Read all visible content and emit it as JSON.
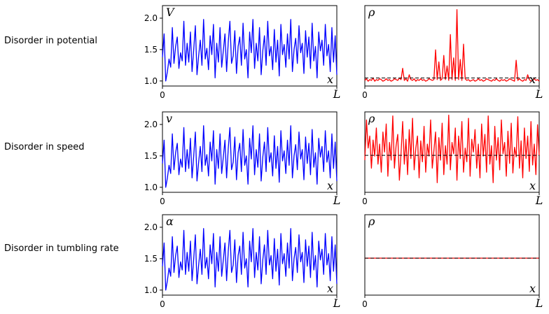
{
  "rows": [
    {
      "label": "Disorder in potential"
    },
    {
      "label": "Disorder in speed"
    },
    {
      "label": "Disorder in tumbling rate"
    }
  ],
  "axis": {
    "x_start": "0",
    "x_end": "L",
    "x_var": "x"
  },
  "colors": {
    "field": "#0000ff",
    "density": "#ff0000",
    "mean": "#000000"
  },
  "chart_data": [
    {
      "type": "line",
      "row": 0,
      "panel": "left",
      "ylabel": "V",
      "xlabel": "x",
      "xticks": [
        "0",
        "L"
      ],
      "yticks": [
        1.0,
        1.5,
        2.0
      ],
      "ylim": [
        0.92,
        2.2
      ],
      "series": [
        {
          "values": [
            1.38,
            1.75,
            1.0,
            1.15,
            1.35,
            1.22,
            1.85,
            1.28,
            1.55,
            1.7,
            1.2,
            1.45,
            1.32,
            1.95,
            1.25,
            1.6,
            1.3,
            1.78,
            1.15,
            1.5,
            1.88,
            1.1,
            1.4,
            1.65,
            1.25,
            1.98,
            1.35,
            1.52,
            1.18,
            1.72,
            1.42,
            1.9,
            1.05,
            1.6,
            1.3,
            1.85,
            1.22,
            1.48,
            1.75,
            1.15,
            1.62,
            1.95,
            1.28,
            1.4,
            1.8,
            1.12,
            1.55,
            1.7,
            1.25,
            1.92,
            1.35,
            1.5,
            1.05,
            1.78,
            1.45,
            1.98,
            1.2,
            1.6,
            1.32,
            1.85,
            1.1,
            1.48,
            1.72,
            1.25,
            1.95,
            1.4,
            1.55,
            1.18,
            1.82,
            1.3,
            1.65,
            1.08,
            1.9,
            1.42,
            1.58,
            1.22,
            1.75,
            1.35,
            1.98,
            1.15,
            1.5,
            1.68,
            1.28,
            1.88,
            1.45,
            1.6,
            1.12,
            1.8,
            1.38,
            1.7,
            1.2,
            1.92,
            1.32,
            1.55,
            1.05,
            1.78,
            1.48,
            1.65,
            1.25,
            1.9,
            1.4,
            1.58,
            1.15,
            1.85,
            1.3,
            1.72,
            1.1
          ]
        }
      ]
    },
    {
      "type": "line",
      "row": 0,
      "panel": "right",
      "ylabel": "ρ",
      "xlabel": "x",
      "xticks": [
        "0",
        "L"
      ],
      "ylim": [
        0.0,
        1.0
      ],
      "mean_line": 0.1,
      "series": [
        {
          "values": [
            0.07,
            0.09,
            0.06,
            0.08,
            0.07,
            0.1,
            0.06,
            0.08,
            0.07,
            0.09,
            0.08,
            0.06,
            0.07,
            0.09,
            0.07,
            0.08,
            0.06,
            0.07,
            0.09,
            0.08,
            0.07,
            0.1,
            0.08,
            0.22,
            0.07,
            0.09,
            0.06,
            0.14,
            0.08,
            0.07,
            0.09,
            0.06,
            0.08,
            0.07,
            0.09,
            0.07,
            0.08,
            0.06,
            0.07,
            0.09,
            0.08,
            0.07,
            0.08,
            0.45,
            0.08,
            0.3,
            0.07,
            0.09,
            0.38,
            0.08,
            0.25,
            0.07,
            0.64,
            0.08,
            0.35,
            0.07,
            0.95,
            0.08,
            0.33,
            0.07,
            0.52,
            0.09,
            0.07,
            0.08,
            0.06,
            0.07,
            0.08,
            0.06,
            0.07,
            0.09,
            0.07,
            0.08,
            0.06,
            0.07,
            0.09,
            0.08,
            0.07,
            0.06,
            0.08,
            0.07,
            0.09,
            0.07,
            0.06,
            0.08,
            0.07,
            0.08,
            0.06,
            0.07,
            0.09,
            0.08,
            0.07,
            0.06,
            0.32,
            0.07,
            0.09,
            0.07,
            0.06,
            0.08,
            0.07,
            0.14,
            0.08,
            0.06,
            0.07,
            0.09,
            0.07,
            0.08,
            0.06
          ]
        }
      ]
    },
    {
      "type": "line",
      "row": 1,
      "panel": "left",
      "ylabel": "v",
      "xlabel": "x",
      "xticks": [
        "0",
        "L"
      ],
      "yticks": [
        1.0,
        1.5,
        2.0
      ],
      "ylim": [
        0.92,
        2.2
      ],
      "series": [
        {
          "values": [
            1.38,
            1.75,
            1.0,
            1.15,
            1.35,
            1.22,
            1.85,
            1.28,
            1.55,
            1.7,
            1.2,
            1.45,
            1.32,
            1.95,
            1.25,
            1.6,
            1.3,
            1.78,
            1.15,
            1.5,
            1.88,
            1.1,
            1.4,
            1.65,
            1.25,
            1.98,
            1.35,
            1.52,
            1.18,
            1.72,
            1.42,
            1.9,
            1.05,
            1.6,
            1.3,
            1.85,
            1.22,
            1.48,
            1.75,
            1.15,
            1.62,
            1.95,
            1.28,
            1.4,
            1.8,
            1.12,
            1.55,
            1.7,
            1.25,
            1.92,
            1.35,
            1.5,
            1.05,
            1.78,
            1.45,
            1.98,
            1.2,
            1.6,
            1.32,
            1.85,
            1.1,
            1.48,
            1.72,
            1.25,
            1.95,
            1.4,
            1.55,
            1.18,
            1.82,
            1.3,
            1.65,
            1.08,
            1.9,
            1.42,
            1.58,
            1.22,
            1.75,
            1.35,
            1.98,
            1.15,
            1.5,
            1.68,
            1.28,
            1.88,
            1.45,
            1.6,
            1.12,
            1.8,
            1.38,
            1.7,
            1.2,
            1.92,
            1.32,
            1.55,
            1.05,
            1.78,
            1.48,
            1.65,
            1.25,
            1.9,
            1.4,
            1.58,
            1.15,
            1.85,
            1.3,
            1.72,
            1.1
          ]
        }
      ]
    },
    {
      "type": "line",
      "row": 1,
      "panel": "right",
      "ylabel": "ρ",
      "xlabel": "x",
      "xticks": [
        "0",
        "L"
      ],
      "ylim": [
        0.0,
        1.0
      ],
      "mean_line": 0.46,
      "series": [
        {
          "values": [
            0.4,
            0.9,
            0.55,
            0.7,
            0.3,
            0.65,
            0.45,
            0.8,
            0.35,
            0.6,
            0.25,
            0.75,
            0.5,
            0.85,
            0.2,
            0.62,
            0.4,
            0.95,
            0.3,
            0.58,
            0.72,
            0.15,
            0.48,
            0.88,
            0.35,
            0.66,
            0.22,
            0.78,
            0.42,
            0.92,
            0.28,
            0.55,
            0.7,
            0.18,
            0.64,
            0.38,
            0.82,
            0.25,
            0.6,
            0.45,
            0.9,
            0.3,
            0.52,
            0.75,
            0.12,
            0.68,
            0.4,
            0.86,
            0.22,
            0.58,
            0.35,
            0.96,
            0.28,
            0.62,
            0.48,
            0.8,
            0.15,
            0.7,
            0.42,
            0.88,
            0.25,
            0.55,
            0.38,
            0.92,
            0.2,
            0.66,
            0.5,
            0.78,
            0.3,
            0.6,
            0.18,
            0.85,
            0.45,
            0.72,
            0.25,
            0.95,
            0.35,
            0.58,
            0.12,
            0.82,
            0.4,
            0.68,
            0.28,
            0.9,
            0.48,
            0.62,
            0.2,
            0.76,
            0.36,
            0.86,
            0.24,
            0.56,
            0.44,
            0.94,
            0.3,
            0.64,
            0.18,
            0.8,
            0.42,
            0.7,
            0.26,
            0.88,
            0.34,
            0.6,
            0.22,
            0.84,
            0.46
          ]
        }
      ]
    },
    {
      "type": "line",
      "row": 2,
      "panel": "left",
      "ylabel": "α",
      "xlabel": "x",
      "xticks": [
        "0",
        "L"
      ],
      "yticks": [
        1.0,
        1.5,
        2.0
      ],
      "ylim": [
        0.92,
        2.2
      ],
      "series": [
        {
          "values": [
            1.38,
            1.75,
            1.0,
            1.15,
            1.35,
            1.22,
            1.85,
            1.28,
            1.55,
            1.7,
            1.2,
            1.45,
            1.32,
            1.95,
            1.25,
            1.6,
            1.3,
            1.78,
            1.15,
            1.5,
            1.88,
            1.1,
            1.4,
            1.65,
            1.25,
            1.98,
            1.35,
            1.52,
            1.18,
            1.72,
            1.42,
            1.9,
            1.05,
            1.6,
            1.3,
            1.85,
            1.22,
            1.48,
            1.75,
            1.15,
            1.62,
            1.95,
            1.28,
            1.4,
            1.8,
            1.12,
            1.55,
            1.7,
            1.25,
            1.92,
            1.35,
            1.5,
            1.05,
            1.78,
            1.45,
            1.98,
            1.2,
            1.6,
            1.32,
            1.85,
            1.1,
            1.48,
            1.72,
            1.25,
            1.95,
            1.4,
            1.55,
            1.18,
            1.82,
            1.3,
            1.65,
            1.08,
            1.9,
            1.42,
            1.58,
            1.22,
            1.75,
            1.35,
            1.98,
            1.15,
            1.5,
            1.68,
            1.28,
            1.88,
            1.45,
            1.6,
            1.12,
            1.8,
            1.38,
            1.7,
            1.2,
            1.92,
            1.32,
            1.55,
            1.05,
            1.78,
            1.48,
            1.65,
            1.25,
            1.9,
            1.4,
            1.58,
            1.15,
            1.85,
            1.3,
            1.72,
            1.1
          ]
        }
      ]
    },
    {
      "type": "line",
      "row": 2,
      "panel": "right",
      "ylabel": "ρ",
      "xlabel": "x",
      "xticks": [
        "0",
        "L"
      ],
      "ylim": [
        0.0,
        1.0
      ],
      "mean_line": 0.46,
      "series": [
        {
          "values": [
            0.46,
            0.46
          ]
        }
      ]
    }
  ]
}
